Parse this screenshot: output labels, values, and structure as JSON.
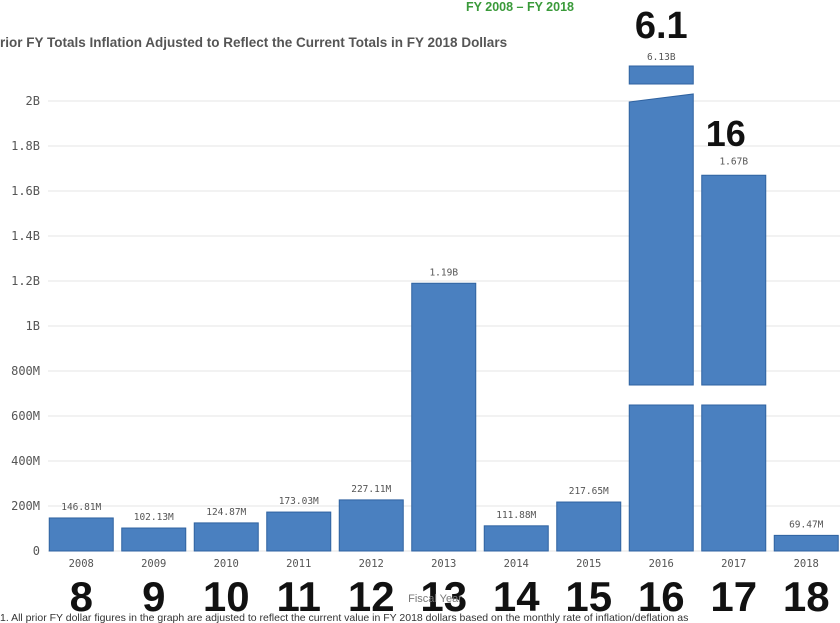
{
  "header": {
    "subtitle": "FY 2008 – FY 2018",
    "title": "rior FY Totals Inflation Adjusted to Reflect the Current Totals in FY 2018 Dollars"
  },
  "chart_data": {
    "type": "bar",
    "xlabel": "Fiscal Year",
    "ylabel": "",
    "ylim": [
      0,
      2000000000
    ],
    "yticks": [
      {
        "value": 0,
        "label": "0"
      },
      {
        "value": 200000000,
        "label": "200M"
      },
      {
        "value": 400000000,
        "label": "400M"
      },
      {
        "value": 600000000,
        "label": "600M"
      },
      {
        "value": 800000000,
        "label": "800M"
      },
      {
        "value": 1000000000,
        "label": "1B"
      },
      {
        "value": 1200000000,
        "label": "1.2B"
      },
      {
        "value": 1400000000,
        "label": "1.4B"
      },
      {
        "value": 1600000000,
        "label": "1.6B"
      },
      {
        "value": 1800000000,
        "label": "1.8B"
      },
      {
        "value": 2000000000,
        "label": "2B"
      }
    ],
    "grid": true,
    "categories": [
      "2008",
      "2009",
      "2010",
      "2011",
      "2012",
      "2013",
      "2014",
      "2015",
      "2016",
      "2017",
      "2018"
    ],
    "values": [
      146810000,
      102130000,
      124870000,
      173030000,
      227110000,
      1190000000,
      111880000,
      217650000,
      6130000000,
      1670000000,
      69470000
    ],
    "data_labels": [
      "146.81M",
      "102.13M",
      "124.87M",
      "173.03M",
      "227.11M",
      "1.19B",
      "111.88M",
      "217.65M",
      "6.13B",
      "1.67B",
      "69.47M"
    ],
    "broken_axis_bars": [
      "2016"
    ],
    "gapped_bars": [
      "2017"
    ]
  },
  "annotations": {
    "handwritten_years": [
      "8",
      "9",
      "10",
      "11",
      "12",
      "13",
      "14",
      "15",
      "16",
      "17",
      "18"
    ],
    "handwritten_2016": "6.1",
    "handwritten_2017": "16"
  },
  "footnote": "1. All prior FY dollar figures in the graph are adjusted to reflect the current value in FY 2018 dollars based on the monthly rate of inflation/deflation as"
}
